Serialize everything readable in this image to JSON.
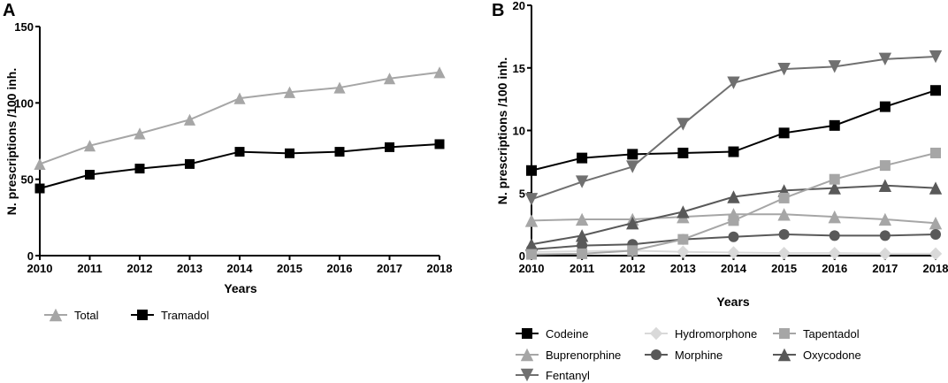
{
  "chart_data": [
    {
      "panel": "A",
      "type": "line",
      "xlabel": "Years",
      "ylabel": "N. prescriptions /100 inh.",
      "ylim": [
        0,
        150
      ],
      "yticks": [
        0,
        50,
        100,
        150
      ],
      "legend": "bottom",
      "categories": [
        "2010",
        "2011",
        "2012",
        "2013",
        "2014",
        "2015",
        "2016",
        "2017",
        "2018"
      ],
      "series": [
        {
          "name": "Total",
          "marker": "triangle-up",
          "color": "#a6a6a6",
          "values": [
            60,
            72,
            80,
            89,
            103,
            107,
            110,
            116,
            120
          ]
        },
        {
          "name": "Tramadol",
          "marker": "square",
          "color": "#000000",
          "values": [
            44,
            53,
            57,
            60,
            68,
            67,
            68,
            71,
            73
          ]
        }
      ]
    },
    {
      "panel": "B",
      "type": "line",
      "xlabel": "Years",
      "ylabel": "N. prescriptions /100 inh.",
      "ylim": [
        0,
        20
      ],
      "yticks": [
        0,
        5,
        10,
        15,
        20
      ],
      "legend": "bottom",
      "categories": [
        "2010",
        "2011",
        "2012",
        "2013",
        "2014",
        "2015",
        "2016",
        "2017",
        "2018"
      ],
      "series": [
        {
          "name": "Codeine",
          "marker": "square",
          "color": "#000000",
          "values": [
            6.8,
            7.8,
            8.1,
            8.2,
            8.3,
            9.8,
            10.4,
            11.9,
            13.2
          ]
        },
        {
          "name": "Hydromorphone",
          "marker": "diamond",
          "color": "#d9d9d9",
          "values": [
            0.3,
            0.35,
            0.4,
            0.3,
            0.25,
            0.2,
            0.2,
            0.15,
            0.15
          ]
        },
        {
          "name": "Tapentadol",
          "marker": "square",
          "color": "#a6a6a6",
          "values": [
            0.1,
            0.15,
            0.4,
            1.3,
            2.8,
            4.6,
            6.1,
            7.2,
            8.2
          ]
        },
        {
          "name": "Buprenorphine",
          "marker": "triangle-up",
          "color": "#a6a6a6",
          "values": [
            2.8,
            2.9,
            2.9,
            3.1,
            3.3,
            3.3,
            3.1,
            2.9,
            2.6
          ]
        },
        {
          "name": "Morphine",
          "marker": "circle",
          "color": "#595959",
          "values": [
            0.5,
            0.8,
            0.9,
            1.3,
            1.5,
            1.7,
            1.6,
            1.6,
            1.7
          ]
        },
        {
          "name": "Oxycodone",
          "marker": "triangle-up",
          "color": "#595959",
          "values": [
            0.9,
            1.6,
            2.6,
            3.5,
            4.7,
            5.2,
            5.4,
            5.6,
            5.4
          ]
        },
        {
          "name": "Fentanyl",
          "marker": "triangle-down",
          "color": "#707070",
          "values": [
            4.5,
            5.9,
            7.1,
            10.5,
            13.8,
            14.9,
            15.1,
            15.7,
            15.9
          ]
        }
      ]
    }
  ]
}
